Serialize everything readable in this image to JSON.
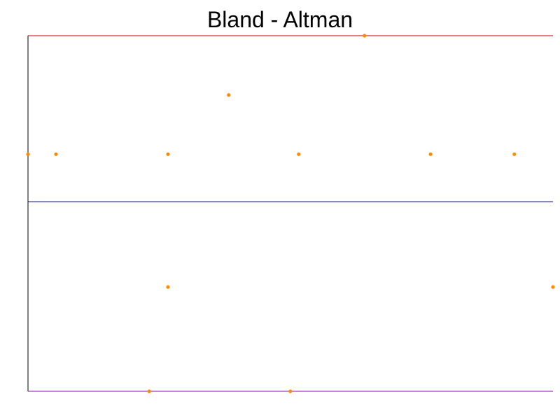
{
  "chart_data": {
    "type": "scatter",
    "title": "Bland - Altman",
    "xlabel": "",
    "ylabel": "",
    "xlim": [
      0,
      18.75
    ],
    "ylim": [
      -1.5,
      1.5
    ],
    "grid": false,
    "legend": "none",
    "points": [
      {
        "x": 0,
        "y": 0.5
      },
      {
        "x": 1,
        "y": 0.5
      },
      {
        "x": 4.33,
        "y": -1.5
      },
      {
        "x": 5,
        "y": 0.5
      },
      {
        "x": 5,
        "y": -0.62
      },
      {
        "x": 7.17,
        "y": 1.0
      },
      {
        "x": 9.37,
        "y": -1.5
      },
      {
        "x": 9.67,
        "y": 0.5
      },
      {
        "x": 12.02,
        "y": 1.5
      },
      {
        "x": 14.38,
        "y": 0.5
      },
      {
        "x": 17.37,
        "y": 0.5
      },
      {
        "x": 18.75,
        "y": -0.62
      }
    ],
    "reference_lines": [
      {
        "kind": "upper-limit",
        "y": 1.5,
        "color": "#cc0000"
      },
      {
        "kind": "mean",
        "y": 0.1,
        "color": "#000080"
      },
      {
        "kind": "lower-limit",
        "y": -1.5,
        "color": "#9900cc"
      }
    ],
    "point_color": "#ff8c00"
  }
}
